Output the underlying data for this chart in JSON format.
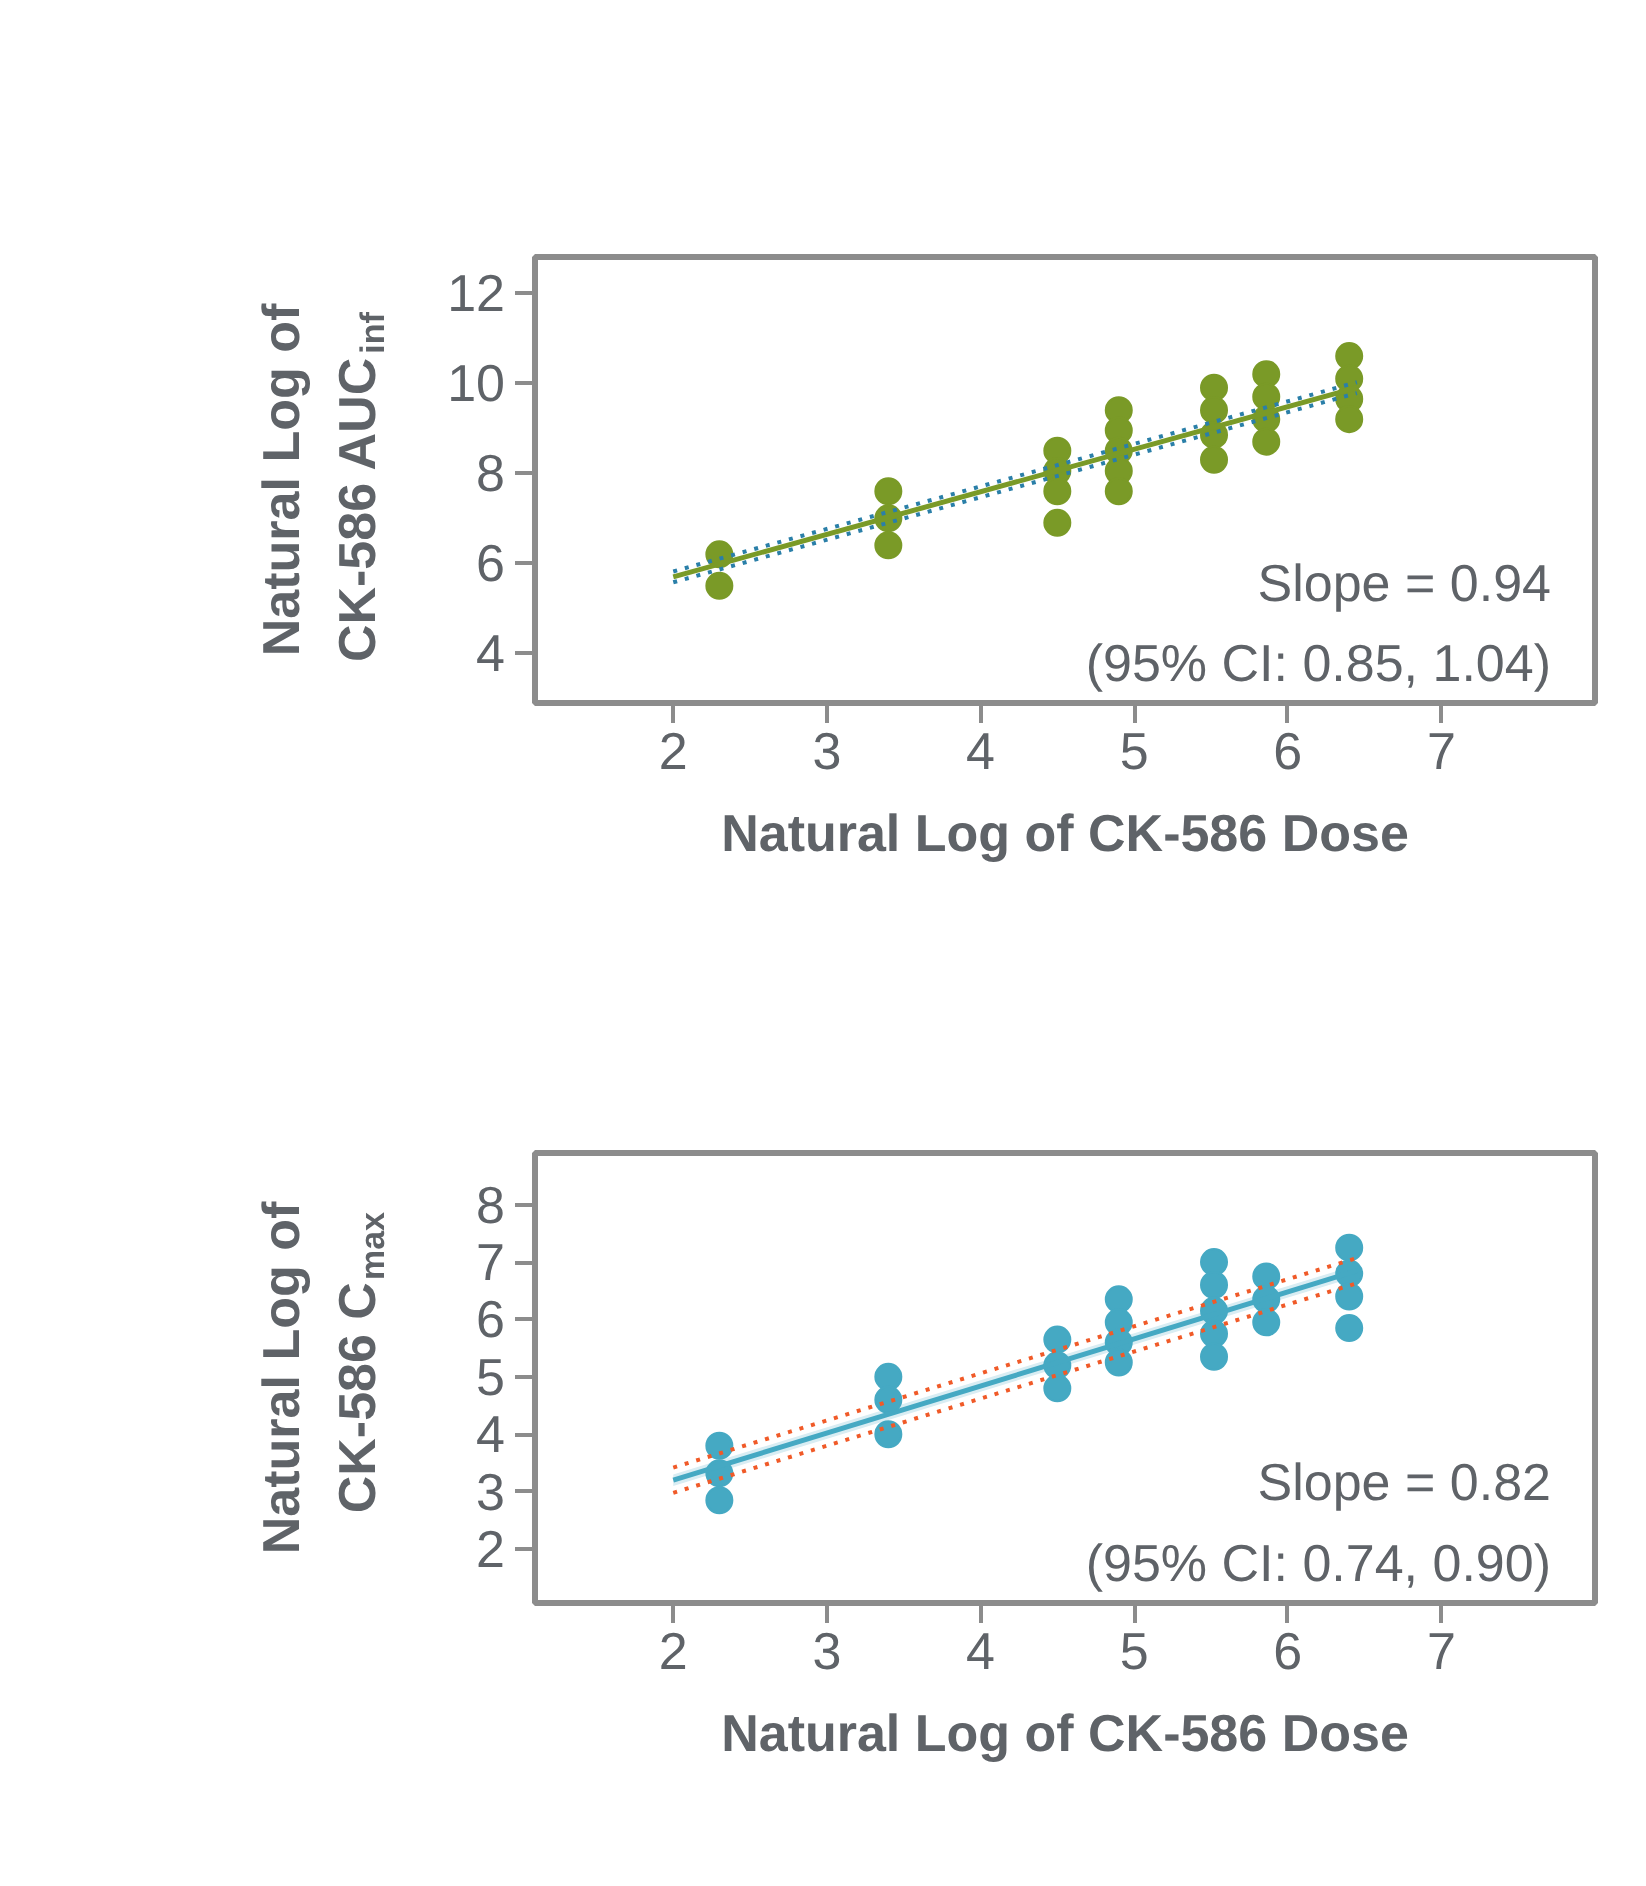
{
  "chart_data": [
    {
      "type": "scatter",
      "xlabel": "Natural Log of CK-586 Dose",
      "ylabel": "Natural Log of\nCK-586 AUC$_{inf}$",
      "xlim": [
        1.1,
        8.0
      ],
      "ylim": [
        2.9,
        12.8
      ],
      "xticks": [
        2,
        3,
        4,
        5,
        6,
        7
      ],
      "yticks": [
        4,
        6,
        8,
        10,
        12
      ],
      "grid": false,
      "marker": "circle",
      "annotations": [
        "Slope = 0.94",
        "(95% CI: 0.85, 1.04)"
      ],
      "series": [
        {
          "color": "#7a9a27",
          "x": [
            2.3,
            2.3,
            3.4,
            3.4,
            3.4,
            4.5,
            4.5,
            4.5,
            4.5,
            4.9,
            4.9,
            4.9,
            4.9,
            4.9,
            5.52,
            5.52,
            5.52,
            5.52,
            5.86,
            5.86,
            5.86,
            5.86,
            6.4,
            6.4,
            6.4,
            6.4
          ],
          "values": [
            6.2,
            5.5,
            7.6,
            7.0,
            6.4,
            8.5,
            8.05,
            7.6,
            6.9,
            9.4,
            8.95,
            8.5,
            8.05,
            7.6,
            9.9,
            9.4,
            8.85,
            8.3,
            10.2,
            9.7,
            9.2,
            8.7,
            10.6,
            10.1,
            9.65,
            9.2
          ]
        },
        {
          "type": "line",
          "marker": "none",
          "color": "#2a7fa8",
          "line_style": "dotted",
          "x": [
            2.0,
            6.45
          ],
          "values": [
            5.82,
            10.02
          ]
        },
        {
          "type": "line",
          "marker": "none",
          "color": "#2a7fa8",
          "line_style": "dotted",
          "x": [
            2.0,
            6.45
          ],
          "values": [
            5.58,
            9.78
          ]
        },
        {
          "type": "line",
          "marker": "none",
          "color": "#7a9a27",
          "line_style": "solid",
          "x": [
            2.0,
            6.45
          ],
          "values": [
            5.7,
            9.9
          ]
        }
      ]
    },
    {
      "type": "scatter",
      "xlabel": "Natural Log of CK-586 Dose",
      "ylabel": "Natural Log of\nCK-586 C$_{max}$",
      "xlim": [
        1.1,
        8.0
      ],
      "ylim": [
        1.06,
        8.9
      ],
      "xticks": [
        2,
        3,
        4,
        5,
        6,
        7
      ],
      "yticks": [
        2,
        3,
        4,
        5,
        6,
        7,
        8
      ],
      "grid": false,
      "marker": "circle",
      "annotations": [
        "Slope = 0.82",
        "(95% CI: 0.74, 0.90)"
      ],
      "series": [
        {
          "color": "#45a9c3",
          "x": [
            2.3,
            2.3,
            2.3,
            3.4,
            3.4,
            3.4,
            4.5,
            4.5,
            4.5,
            4.9,
            4.9,
            4.9,
            4.9,
            5.52,
            5.52,
            5.52,
            5.52,
            5.52,
            5.86,
            5.86,
            5.86,
            6.4,
            6.4,
            6.4,
            6.4
          ],
          "values": [
            3.8,
            3.32,
            2.85,
            5.0,
            4.6,
            4.0,
            5.65,
            5.2,
            4.8,
            6.35,
            5.95,
            5.6,
            5.25,
            7.0,
            6.6,
            6.15,
            5.75,
            5.35,
            6.75,
            6.35,
            5.95,
            7.25,
            6.8,
            6.4,
            5.85
          ]
        },
        {
          "type": "line",
          "marker": "none",
          "color": "#45a9c3",
          "line_style": "solid",
          "x": [
            2.0,
            6.45
          ],
          "values": [
            3.2,
            6.85
          ],
          "lower": [
            3.1,
            6.75
          ],
          "upper": [
            3.3,
            6.95
          ]
        },
        {
          "type": "line",
          "marker": "none",
          "color": "#f05a28",
          "line_style": "dotted",
          "x": [
            2.0,
            6.45
          ],
          "values": [
            3.42,
            7.07
          ]
        },
        {
          "type": "line",
          "marker": "none",
          "color": "#f05a28",
          "line_style": "dotted",
          "x": [
            2.0,
            6.45
          ],
          "values": [
            2.98,
            6.63
          ]
        }
      ]
    }
  ]
}
